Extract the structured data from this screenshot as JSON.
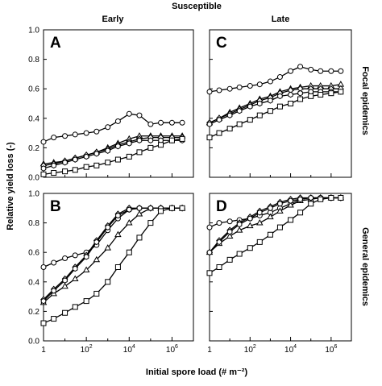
{
  "figure": {
    "title": "Susceptible",
    "column_labels": [
      "Early",
      "Late"
    ],
    "row_labels": [
      "Focal epidemics",
      "General epidemics"
    ],
    "ylabel": "Relative yield loss (-)",
    "xlabel": "Initial spore load (# m⁻²)",
    "y_ticks": [
      "0.0",
      "0.2",
      "0.4",
      "0.6",
      "0.8",
      "1.0"
    ],
    "x_ticks": [
      {
        "base": "1",
        "exp": ""
      },
      {
        "base": "10",
        "exp": "2"
      },
      {
        "base": "10",
        "exp": "4"
      },
      {
        "base": "10",
        "exp": "6"
      }
    ]
  },
  "chart_data": [
    {
      "type": "line",
      "panel": "A",
      "column": "Early",
      "row": "Focal epidemics",
      "x_scale": "log10",
      "xlim": [
        1,
        10000000
      ],
      "ylim": [
        0,
        1
      ],
      "series": [
        {
          "marker": "circle",
          "x": [
            1,
            3,
            10,
            30,
            100,
            300,
            1000,
            3000,
            10000,
            30000,
            100000,
            300000,
            1000000,
            3000000
          ],
          "y": [
            0.24,
            0.27,
            0.28,
            0.29,
            0.3,
            0.31,
            0.34,
            0.38,
            0.43,
            0.42,
            0.36,
            0.37,
            0.37,
            0.37
          ]
        },
        {
          "marker": "triangle",
          "x": [
            1,
            3,
            10,
            30,
            100,
            300,
            1000,
            3000,
            10000,
            30000,
            100000,
            300000,
            1000000,
            3000000
          ],
          "y": [
            0.09,
            0.1,
            0.11,
            0.13,
            0.15,
            0.17,
            0.2,
            0.23,
            0.26,
            0.28,
            0.28,
            0.28,
            0.28,
            0.28
          ]
        },
        {
          "marker": "diamond",
          "x": [
            1,
            3,
            10,
            30,
            100,
            300,
            1000,
            3000,
            10000,
            30000,
            100000,
            300000,
            1000000,
            3000000
          ],
          "y": [
            0.08,
            0.09,
            0.11,
            0.13,
            0.15,
            0.17,
            0.19,
            0.22,
            0.24,
            0.26,
            0.27,
            0.27,
            0.27,
            0.27
          ]
        },
        {
          "marker": "hexagon",
          "x": [
            1,
            3,
            10,
            30,
            100,
            300,
            1000,
            3000,
            10000,
            30000,
            100000,
            300000,
            1000000,
            3000000
          ],
          "y": [
            0.06,
            0.08,
            0.1,
            0.12,
            0.14,
            0.16,
            0.18,
            0.21,
            0.23,
            0.25,
            0.25,
            0.25,
            0.25,
            0.25
          ]
        },
        {
          "marker": "square",
          "x": [
            1,
            3,
            10,
            30,
            100,
            300,
            1000,
            3000,
            10000,
            30000,
            100000,
            300000,
            1000000,
            3000000
          ],
          "y": [
            0.02,
            0.03,
            0.04,
            0.05,
            0.07,
            0.08,
            0.1,
            0.12,
            0.14,
            0.17,
            0.2,
            0.22,
            0.25,
            0.26
          ]
        }
      ]
    },
    {
      "type": "line",
      "panel": "C",
      "column": "Late",
      "row": "Focal epidemics",
      "x_scale": "log10",
      "xlim": [
        1,
        10000000
      ],
      "ylim": [
        0,
        1
      ],
      "series": [
        {
          "marker": "circle",
          "x": [
            1,
            3,
            10,
            30,
            100,
            300,
            1000,
            3000,
            10000,
            30000,
            100000,
            300000,
            1000000,
            3000000
          ],
          "y": [
            0.58,
            0.59,
            0.6,
            0.61,
            0.62,
            0.63,
            0.65,
            0.68,
            0.72,
            0.75,
            0.73,
            0.72,
            0.72,
            0.72
          ]
        },
        {
          "marker": "triangle",
          "x": [
            1,
            3,
            10,
            30,
            100,
            300,
            1000,
            3000,
            10000,
            30000,
            100000,
            300000,
            1000000,
            3000000
          ],
          "y": [
            0.37,
            0.4,
            0.44,
            0.47,
            0.5,
            0.53,
            0.55,
            0.58,
            0.6,
            0.61,
            0.62,
            0.62,
            0.62,
            0.63
          ]
        },
        {
          "marker": "diamond",
          "x": [
            1,
            3,
            10,
            30,
            100,
            300,
            1000,
            3000,
            10000,
            30000,
            100000,
            300000,
            1000000,
            3000000
          ],
          "y": [
            0.37,
            0.4,
            0.43,
            0.46,
            0.49,
            0.52,
            0.54,
            0.57,
            0.59,
            0.6,
            0.6,
            0.6,
            0.6,
            0.6
          ]
        },
        {
          "marker": "hexagon",
          "x": [
            1,
            3,
            10,
            30,
            100,
            300,
            1000,
            3000,
            10000,
            30000,
            100000,
            300000,
            1000000,
            3000000
          ],
          "y": [
            0.36,
            0.39,
            0.42,
            0.45,
            0.48,
            0.5,
            0.52,
            0.55,
            0.56,
            0.57,
            0.58,
            0.58,
            0.58,
            0.58
          ]
        },
        {
          "marker": "square",
          "x": [
            1,
            3,
            10,
            30,
            100,
            300,
            1000,
            3000,
            10000,
            30000,
            100000,
            300000,
            1000000,
            3000000
          ],
          "y": [
            0.27,
            0.3,
            0.33,
            0.36,
            0.39,
            0.42,
            0.45,
            0.48,
            0.5,
            0.53,
            0.55,
            0.56,
            0.57,
            0.58
          ]
        }
      ]
    },
    {
      "type": "line",
      "panel": "B",
      "column": "Early",
      "row": "General epidemics",
      "x_scale": "log10",
      "xlim": [
        1,
        10000000
      ],
      "ylim": [
        0,
        1
      ],
      "series": [
        {
          "marker": "circle",
          "x": [
            1,
            3,
            10,
            30,
            100,
            300,
            1000,
            3000,
            10000,
            30000,
            100000,
            300000,
            1000000,
            3000000
          ],
          "y": [
            0.5,
            0.53,
            0.56,
            0.58,
            0.6,
            0.65,
            0.75,
            0.83,
            0.89,
            0.9,
            0.9,
            0.9,
            0.9,
            0.9
          ]
        },
        {
          "marker": "triangle",
          "x": [
            1,
            3,
            10,
            30,
            100,
            300,
            1000,
            3000,
            10000,
            30000,
            100000,
            300000,
            1000000,
            3000000
          ],
          "y": [
            0.26,
            0.32,
            0.37,
            0.42,
            0.48,
            0.55,
            0.63,
            0.72,
            0.8,
            0.86,
            0.9,
            0.9,
            0.9,
            0.9
          ]
        },
        {
          "marker": "diamond",
          "x": [
            1,
            3,
            10,
            30,
            100,
            300,
            1000,
            3000,
            10000,
            30000,
            100000,
            300000,
            1000000,
            3000000
          ],
          "y": [
            0.28,
            0.35,
            0.42,
            0.5,
            0.58,
            0.68,
            0.78,
            0.86,
            0.9,
            0.9,
            0.9,
            0.9,
            0.9,
            0.9
          ]
        },
        {
          "marker": "hexagon",
          "x": [
            1,
            3,
            10,
            30,
            100,
            300,
            1000,
            3000,
            10000,
            30000,
            100000,
            300000,
            1000000,
            3000000
          ],
          "y": [
            0.27,
            0.34,
            0.41,
            0.49,
            0.57,
            0.67,
            0.77,
            0.85,
            0.89,
            0.9,
            0.9,
            0.9,
            0.9,
            0.9
          ]
        },
        {
          "marker": "square",
          "x": [
            1,
            3,
            10,
            30,
            100,
            300,
            1000,
            3000,
            10000,
            30000,
            100000,
            300000,
            1000000,
            3000000
          ],
          "y": [
            0.12,
            0.15,
            0.19,
            0.23,
            0.27,
            0.32,
            0.4,
            0.5,
            0.6,
            0.7,
            0.8,
            0.88,
            0.9,
            0.9
          ]
        }
      ]
    },
    {
      "type": "line",
      "panel": "D",
      "column": "Late",
      "row": "General epidemics",
      "x_scale": "log10",
      "xlim": [
        1,
        10000000
      ],
      "ylim": [
        0,
        1
      ],
      "series": [
        {
          "marker": "circle",
          "x": [
            1,
            3,
            10,
            30,
            100,
            300,
            1000,
            3000,
            10000,
            30000,
            100000,
            300000,
            1000000,
            3000000
          ],
          "y": [
            0.77,
            0.8,
            0.81,
            0.82,
            0.83,
            0.85,
            0.87,
            0.9,
            0.93,
            0.96,
            0.97,
            0.97,
            0.97,
            0.97
          ]
        },
        {
          "marker": "triangle",
          "x": [
            1,
            3,
            10,
            30,
            100,
            300,
            1000,
            3000,
            10000,
            30000,
            100000,
            300000,
            1000000,
            3000000
          ],
          "y": [
            0.6,
            0.66,
            0.71,
            0.75,
            0.78,
            0.8,
            0.84,
            0.88,
            0.92,
            0.95,
            0.96,
            0.97,
            0.97,
            0.97
          ]
        },
        {
          "marker": "diamond",
          "x": [
            1,
            3,
            10,
            30,
            100,
            300,
            1000,
            3000,
            10000,
            30000,
            100000,
            300000,
            1000000,
            3000000
          ],
          "y": [
            0.6,
            0.68,
            0.75,
            0.8,
            0.84,
            0.88,
            0.91,
            0.94,
            0.96,
            0.97,
            0.97,
            0.97,
            0.97,
            0.97
          ]
        },
        {
          "marker": "hexagon",
          "x": [
            1,
            3,
            10,
            30,
            100,
            300,
            1000,
            3000,
            10000,
            30000,
            100000,
            300000,
            1000000,
            3000000
          ],
          "y": [
            0.6,
            0.67,
            0.74,
            0.79,
            0.83,
            0.87,
            0.9,
            0.93,
            0.95,
            0.96,
            0.97,
            0.97,
            0.97,
            0.97
          ]
        },
        {
          "marker": "square",
          "x": [
            1,
            3,
            10,
            30,
            100,
            300,
            1000,
            3000,
            10000,
            30000,
            100000,
            300000,
            1000000,
            3000000
          ],
          "y": [
            0.46,
            0.5,
            0.55,
            0.59,
            0.63,
            0.67,
            0.72,
            0.77,
            0.82,
            0.87,
            0.93,
            0.96,
            0.97,
            0.97
          ]
        }
      ]
    }
  ]
}
